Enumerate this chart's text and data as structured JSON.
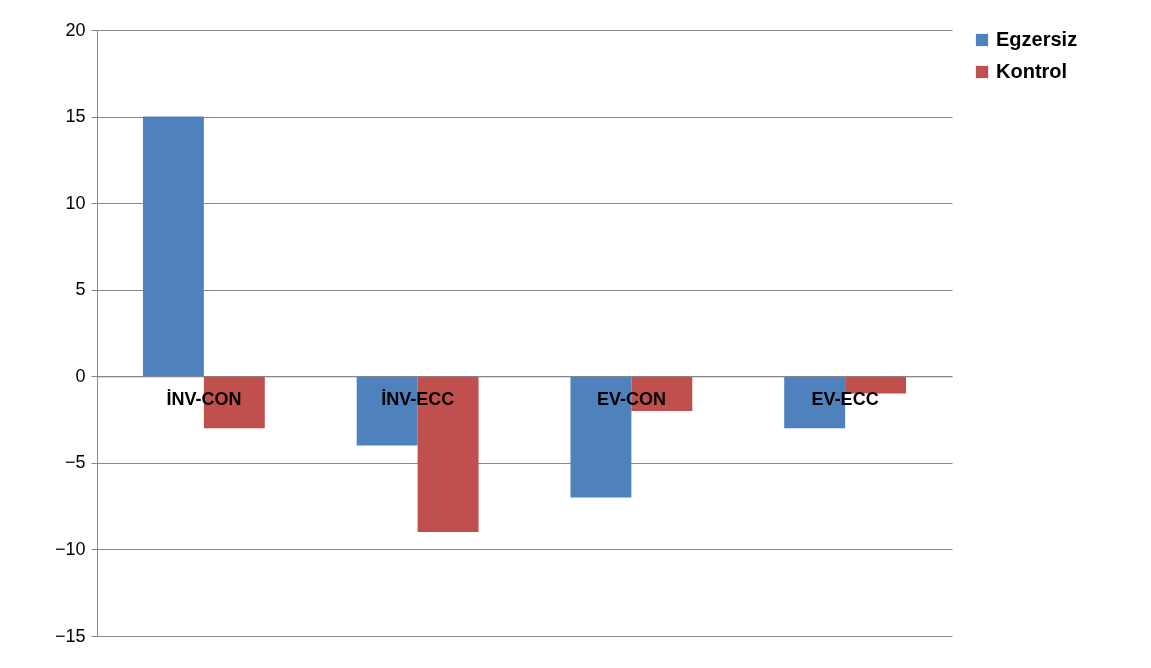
{
  "chart_data": {
    "type": "bar",
    "categories": [
      "İNV-CON",
      "İNV-ECC",
      "EV-CON",
      "EV-ECC"
    ],
    "series": [
      {
        "name": "Egzersiz",
        "color": "#4f81bd",
        "values": [
          15,
          -4,
          -7,
          -3
        ]
      },
      {
        "name": "Kontrol",
        "color": "#c0504d",
        "values": [
          -3,
          -9,
          -2,
          -1
        ]
      }
    ],
    "ylim": [
      -15,
      20
    ],
    "yticks": [
      -15,
      -10,
      -5,
      0,
      5,
      10,
      15,
      20
    ],
    "grid": "y",
    "legend": "right"
  }
}
